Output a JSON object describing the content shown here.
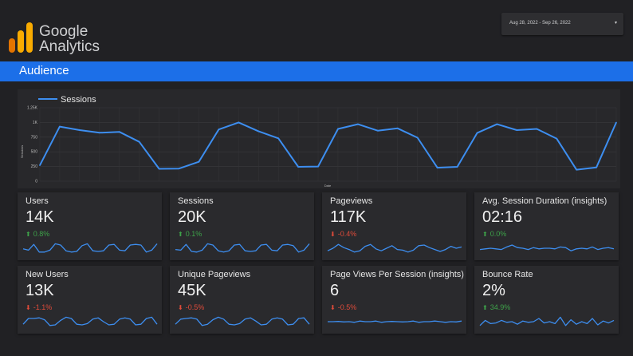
{
  "header": {
    "logo_line1": "Google",
    "logo_line2": "Analytics",
    "date_range": "Aug 28, 2022 - Sep 26, 2022",
    "date_caret": "▾",
    "banner_title": "Audience"
  },
  "colors": {
    "accent": "#1c6fe8",
    "line": "#3d8ef0",
    "up": "#3ea34a",
    "down": "#e04b3a",
    "logo_orange": "#f9ab00",
    "logo_dark_orange": "#e37400"
  },
  "chart_data": {
    "type": "line",
    "legend": "Sessions",
    "xlabel": "Date",
    "ylabel": "Sessions",
    "ylim": [
      0,
      1250
    ],
    "yticks": [
      0,
      250,
      500,
      750,
      1000,
      1250
    ],
    "ytick_labels": [
      "0",
      "250",
      "500",
      "750",
      "1K",
      "1.25K"
    ],
    "grid": true,
    "legend_position": "top-left",
    "values": [
      270,
      930,
      870,
      825,
      840,
      670,
      210,
      215,
      330,
      880,
      1000,
      850,
      730,
      245,
      250,
      890,
      970,
      860,
      900,
      740,
      230,
      245,
      820,
      970,
      870,
      890,
      725,
      195,
      235,
      1000
    ]
  },
  "cards": [
    {
      "label": "Users",
      "value": "14K",
      "delta": "0.8%",
      "direction": "up",
      "spark": [
        0.45,
        0.35,
        0.8,
        0.2,
        0.2,
        0.35,
        0.85,
        0.75,
        0.3,
        0.2,
        0.25,
        0.7,
        0.85,
        0.3,
        0.25,
        0.3,
        0.75,
        0.8,
        0.35,
        0.3,
        0.75,
        0.8,
        0.75,
        0.2,
        0.35,
        0.85
      ]
    },
    {
      "label": "Sessions",
      "value": "20K",
      "delta": "0.1%",
      "direction": "up",
      "spark": [
        0.4,
        0.35,
        0.8,
        0.25,
        0.2,
        0.35,
        0.85,
        0.75,
        0.3,
        0.2,
        0.3,
        0.75,
        0.8,
        0.3,
        0.25,
        0.3,
        0.75,
        0.8,
        0.35,
        0.3,
        0.75,
        0.8,
        0.7,
        0.2,
        0.35,
        0.85
      ]
    },
    {
      "label": "Pageviews",
      "value": "117K",
      "delta": "-0.4%",
      "direction": "down",
      "spark": [
        0.3,
        0.5,
        0.8,
        0.55,
        0.4,
        0.2,
        0.3,
        0.65,
        0.8,
        0.45,
        0.3,
        0.5,
        0.7,
        0.4,
        0.35,
        0.2,
        0.35,
        0.7,
        0.75,
        0.55,
        0.4,
        0.25,
        0.4,
        0.65,
        0.5,
        0.6
      ]
    },
    {
      "label": "Avg. Session Duration (insights)",
      "value": "02:16",
      "delta": "0.0%",
      "direction": "up",
      "spark": [
        0.4,
        0.45,
        0.5,
        0.45,
        0.4,
        0.6,
        0.75,
        0.55,
        0.5,
        0.4,
        0.55,
        0.45,
        0.5,
        0.5,
        0.45,
        0.6,
        0.55,
        0.3,
        0.45,
        0.5,
        0.45,
        0.6,
        0.4,
        0.5,
        0.55,
        0.45
      ]
    },
    {
      "label": "New Users",
      "value": "13K",
      "delta": "-1.1%",
      "direction": "down",
      "spark": [
        0.3,
        0.75,
        0.75,
        0.8,
        0.65,
        0.2,
        0.25,
        0.6,
        0.85,
        0.75,
        0.3,
        0.25,
        0.35,
        0.7,
        0.8,
        0.5,
        0.25,
        0.3,
        0.7,
        0.8,
        0.7,
        0.25,
        0.3,
        0.75,
        0.85,
        0.3
      ]
    },
    {
      "label": "Unique Pageviews",
      "value": "45K",
      "delta": "-0.5%",
      "direction": "down",
      "spark": [
        0.3,
        0.7,
        0.75,
        0.8,
        0.7,
        0.2,
        0.3,
        0.65,
        0.85,
        0.7,
        0.3,
        0.25,
        0.35,
        0.7,
        0.8,
        0.55,
        0.25,
        0.3,
        0.7,
        0.8,
        0.7,
        0.25,
        0.3,
        0.75,
        0.8,
        0.3
      ]
    },
    {
      "label": "Page Views Per Session (insights)",
      "value": "6",
      "delta": "-0.5%",
      "direction": "down",
      "spark": [
        0.5,
        0.5,
        0.52,
        0.48,
        0.5,
        0.45,
        0.55,
        0.5,
        0.5,
        0.55,
        0.45,
        0.5,
        0.52,
        0.5,
        0.48,
        0.5,
        0.55,
        0.45,
        0.5,
        0.5,
        0.55,
        0.5,
        0.45,
        0.5,
        0.48,
        0.55
      ]
    },
    {
      "label": "Bounce Rate",
      "value": "2%",
      "delta": "34.9%",
      "direction": "up",
      "spark": [
        0.2,
        0.6,
        0.35,
        0.4,
        0.6,
        0.45,
        0.5,
        0.3,
        0.55,
        0.45,
        0.5,
        0.75,
        0.4,
        0.5,
        0.35,
        0.85,
        0.2,
        0.65,
        0.3,
        0.5,
        0.35,
        0.75,
        0.25,
        0.55,
        0.4,
        0.6
      ]
    }
  ]
}
